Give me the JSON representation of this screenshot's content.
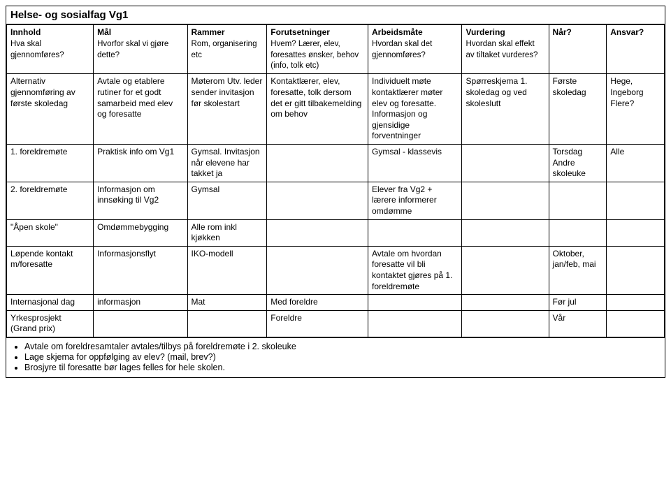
{
  "title": "Helse- og sosialfag Vg1",
  "headers": [
    {
      "main": "Innhold",
      "sub": "Hva skal gjennomføres?"
    },
    {
      "main": "Mål",
      "sub": "Hvorfor skal vi gjøre dette?"
    },
    {
      "main": "Rammer",
      "sub": "Rom, organisering etc"
    },
    {
      "main": "Forutsetninger",
      "sub": "Hvem? Lærer, elev, foresattes ønsker, behov (info, tolk etc)"
    },
    {
      "main": "Arbeidsmåte",
      "sub": "Hvordan skal det gjennomføres?"
    },
    {
      "main": "Vurdering",
      "sub": "Hvordan skal effekt av tiltaket vurderes?"
    },
    {
      "main": "Når?",
      "sub": ""
    },
    {
      "main": "Ansvar?",
      "sub": ""
    }
  ],
  "rows": [
    {
      "c0": "Alternativ gjennomføring av første skoledag",
      "c1": "Avtale og etablere rutiner for et godt samarbeid med elev og foresatte",
      "c2": "Møterom Utv. leder sender invitasjon før skolestart",
      "c3": "Kontaktlærer, elev, foresatte, tolk dersom det er gitt tilbakemelding om behov",
      "c4": "Individuelt møte kontaktlærer møter elev og foresatte. Informasjon og gjensidige forventninger",
      "c5": "Spørreskjema 1. skoledag og ved skoleslutt",
      "c6": "Første skoledag",
      "c7": "Hege, Ingeborg Flere?"
    },
    {
      "c0": "1. foreldremøte",
      "c1": "Praktisk info om Vg1",
      "c2": "Gymsal. Invitasjon når elevene har takket ja",
      "c3": "",
      "c4": "Gymsal - klassevis",
      "c5": "",
      "c6": "Torsdag Andre skoleuke",
      "c7": "Alle"
    },
    {
      "c0": "2. foreldremøte",
      "c1": "Informasjon om innsøking til Vg2",
      "c2": "Gymsal",
      "c3": "",
      "c4": "Elever fra Vg2 + lærere informerer omdømme",
      "c5": "",
      "c6": "",
      "c7": ""
    },
    {
      "c0": "\"Åpen skole\"",
      "c1": "Omdømmebygging",
      "c2": "Alle rom inkl kjøkken",
      "c3": "",
      "c4": "",
      "c5": "",
      "c6": "",
      "c7": ""
    },
    {
      "c0": "Løpende kontakt m/foresatte",
      "c1": "Informasjonsflyt",
      "c2": "IKO-modell",
      "c3": "",
      "c4": "Avtale om hvordan foresatte vil bli kontaktet gjøres på 1. foreldremøte",
      "c5": "",
      "c6": "Oktober, jan/feb, mai",
      "c7": ""
    },
    {
      "c0": "Internasjonal dag",
      "c1": "informasjon",
      "c2": "Mat",
      "c3": "Med foreldre",
      "c4": "",
      "c5": "",
      "c6": "Før jul",
      "c7": ""
    },
    {
      "c0": "Yrkesprosjekt (Grand prix)",
      "c1": "",
      "c2": "",
      "c3": "Foreldre",
      "c4": "",
      "c5": "",
      "c6": "Vår",
      "c7": ""
    }
  ],
  "bullets": [
    "Avtale om foreldresamtaler avtales/tilbys på foreldremøte i 2. skoleuke",
    "Lage skjema for oppfølging av elev? (mail, brev?)",
    "Brosjyre til foresatte bør lages felles for hele skolen."
  ]
}
